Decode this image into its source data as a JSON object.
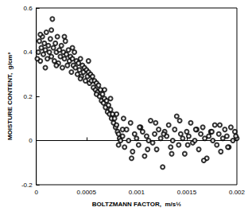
{
  "chart_data": {
    "type": "scatter",
    "x_label": "BOLTZMANN FACTOR,  m/s½",
    "y_label": "MOISTURE CONTENT,  g/cm³",
    "xlim": [
      0,
      0.002
    ],
    "xticks": [
      0,
      0.0005,
      0.001,
      0.0015,
      0.002
    ],
    "ylim": [
      -0.2,
      0.6
    ],
    "yticks": [
      -0.2,
      0,
      0.2,
      0.4,
      0.6
    ],
    "grid": false,
    "series": [
      {
        "type": "scatter",
        "marker": "circle",
        "color": "#000000",
        "x": [
          2e-05,
          3e-05,
          4e-05,
          5e-05,
          6e-05,
          7e-05,
          8e-05,
          9e-05,
          0.0001,
          0.00011,
          0.00012,
          0.00013,
          0.00014,
          0.00015,
          0.00016,
          0.00017,
          0.00018,
          0.00019,
          0.0002,
          0.00021,
          0.00022,
          0.00023,
          0.00024,
          0.00025,
          0.00026,
          0.00027,
          0.00028,
          0.00029,
          0.0003,
          0.00031,
          0.00032,
          0.00033,
          0.00034,
          0.00035,
          0.00036,
          0.00037,
          0.00038,
          0.00039,
          0.0004,
          0.00041,
          0.00042,
          0.00043,
          0.00044,
          0.00045,
          0.00046,
          0.00047,
          0.00048,
          0.00049,
          0.0005,
          0.00051,
          0.00052,
          0.00053,
          0.00054,
          0.00055,
          0.00056,
          0.00057,
          0.00058,
          0.00059,
          0.0006,
          0.00061,
          0.00062,
          0.00063,
          0.00064,
          0.00065,
          0.00066,
          0.00067,
          0.00068,
          0.00069,
          0.0007,
          0.00071,
          0.00072,
          0.00073,
          0.00074,
          0.00075,
          0.00076,
          0.00077,
          0.00078,
          0.00079,
          0.0008,
          0.00081,
          0.00082,
          0.00083,
          0.00084,
          1e-05,
          4e-05,
          9e-05,
          0.00015,
          0.0002,
          0.00028,
          0.00036,
          0.00044,
          0.00052,
          0.0006,
          0.00068,
          0.00074,
          0.0008,
          0.00082,
          0.00086,
          0.00086,
          0.00088,
          0.0009,
          0.00092,
          0.00094,
          0.00096,
          0.00098,
          0.001,
          0.00102,
          0.00104,
          0.00106,
          0.00108,
          0.0011,
          0.00112,
          0.00114,
          0.00116,
          0.00118,
          0.0012,
          0.00122,
          0.00124,
          0.00126,
          0.00128,
          0.0013,
          0.00132,
          0.00134,
          0.00136,
          0.00138,
          0.0014,
          0.00142,
          0.00144,
          0.00146,
          0.00148,
          0.0015,
          0.00152,
          0.00154,
          0.00156,
          0.00158,
          0.0016,
          0.00162,
          0.00164,
          0.00166,
          0.00168,
          0.0017,
          0.00172,
          0.00174,
          0.00176,
          0.00178,
          0.0018,
          0.00182,
          0.00184,
          0.00186,
          0.00188,
          0.0019,
          0.00192,
          0.00194,
          0.00196,
          0.00198,
          0.002,
          0.00087,
          0.00095,
          0.00103,
          0.00111,
          0.00119,
          0.00127,
          0.00135,
          0.00143,
          0.00151,
          0.00159,
          0.00167,
          0.00175,
          0.00183,
          0.00191,
          0.00199
        ],
        "values": [
          0.4,
          0.45,
          0.36,
          0.42,
          0.47,
          0.39,
          0.44,
          0.41,
          0.49,
          0.37,
          0.43,
          0.4,
          0.46,
          0.38,
          0.55,
          0.42,
          0.36,
          0.44,
          0.4,
          0.47,
          0.35,
          0.41,
          0.38,
          0.43,
          0.33,
          0.4,
          0.37,
          0.45,
          0.39,
          0.34,
          0.41,
          0.36,
          0.38,
          0.31,
          0.37,
          0.34,
          0.4,
          0.33,
          0.36,
          0.3,
          0.35,
          0.32,
          0.37,
          0.29,
          0.34,
          0.31,
          0.33,
          0.27,
          0.32,
          0.29,
          0.31,
          0.26,
          0.3,
          0.27,
          0.29,
          0.24,
          0.27,
          0.23,
          0.26,
          0.22,
          0.25,
          0.2,
          0.23,
          0.18,
          0.21,
          0.17,
          0.19,
          0.15,
          0.18,
          0.13,
          0.16,
          0.12,
          0.14,
          0.1,
          0.12,
          0.08,
          0.1,
          0.06,
          0.07,
          0.04,
          0.03,
          0.01,
          0.0,
          0.37,
          0.48,
          0.33,
          0.5,
          0.34,
          0.47,
          0.42,
          0.28,
          0.36,
          0.21,
          0.23,
          0.19,
          0.12,
          -0.02,
          0.05,
          0.02,
          -0.03,
          0.05,
          0.0,
          0.08,
          -0.05,
          0.03,
          0.01,
          -0.02,
          0.06,
          0.04,
          -0.07,
          0.02,
          0.0,
          0.09,
          -0.01,
          0.03,
          -0.04,
          0.05,
          0.01,
          -0.12,
          0.04,
          0.02,
          0.07,
          -0.03,
          0.0,
          0.05,
          0.11,
          -0.02,
          0.03,
          0.01,
          -0.06,
          0.04,
          0.02,
          0.08,
          -0.01,
          0.0,
          0.05,
          -0.04,
          0.03,
          0.06,
          0.01,
          -0.08,
          0.02,
          0.04,
          0.0,
          0.07,
          -0.02,
          0.03,
          -0.05,
          0.01,
          0.05,
          0.02,
          -0.03,
          0.06,
          0.0,
          0.04,
          0.01,
          0.1,
          -0.08,
          0.06,
          -0.04,
          0.08,
          0.03,
          -0.06,
          0.09,
          -0.02,
          0.05,
          -0.09,
          0.04,
          0.07,
          -0.03,
          0.02
        ]
      },
      {
        "type": "line",
        "line_style": "solid",
        "color": "#000000",
        "x": [
          0,
          0.002
        ],
        "values": [
          0,
          0
        ]
      }
    ]
  }
}
